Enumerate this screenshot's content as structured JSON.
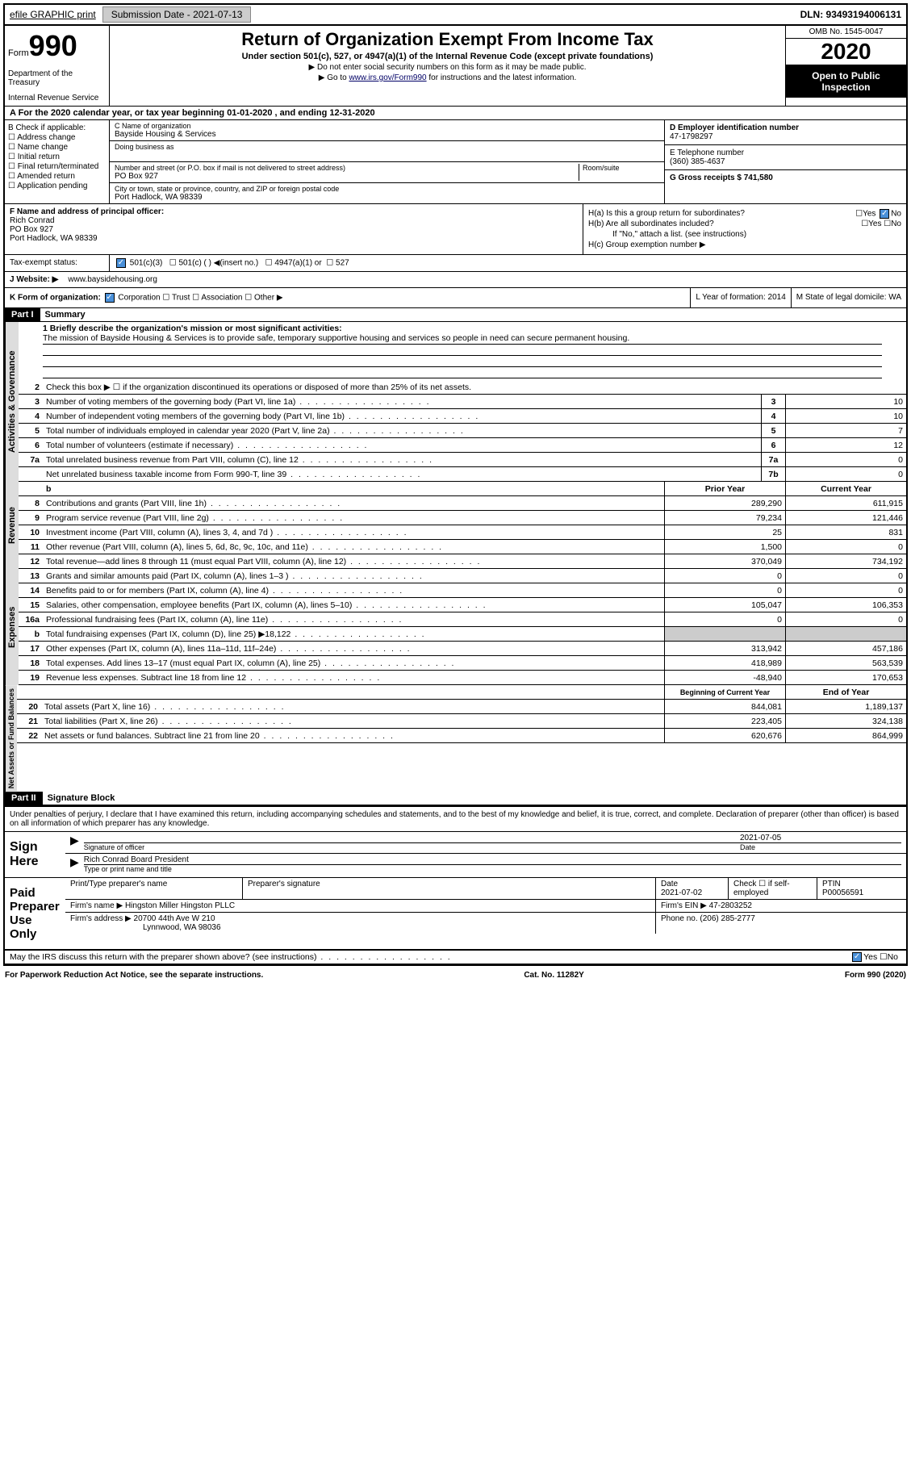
{
  "topbar": {
    "efile": "efile GRAPHIC print",
    "submission": "Submission Date - 2021-07-13",
    "dln": "DLN: 93493194006131"
  },
  "header": {
    "form_word": "Form",
    "form_num": "990",
    "title": "Return of Organization Exempt From Income Tax",
    "sub": "Under section 501(c), 527, or 4947(a)(1) of the Internal Revenue Code (except private foundations)",
    "note1": "▶ Do not enter social security numbers on this form as it may be made public.",
    "note2_pre": "▶ Go to ",
    "note2_link": "www.irs.gov/Form990",
    "note2_post": " for instructions and the latest information.",
    "dept1": "Department of the Treasury",
    "dept2": "Internal Revenue Service",
    "omb": "OMB No. 1545-0047",
    "year": "2020",
    "inspection": "Open to Public Inspection"
  },
  "row_a": "A   For the 2020 calendar year, or tax year beginning 01-01-2020    , and ending 12-31-2020",
  "col_b": {
    "title": "B Check if applicable:",
    "opts": [
      "Address change",
      "Name change",
      "Initial return",
      "Final return/terminated",
      "Amended return",
      "Application pending"
    ]
  },
  "col_c": {
    "name_lbl": "C Name of organization",
    "name": "Bayside Housing & Services",
    "dba_lbl": "Doing business as",
    "addr_lbl": "Number and street (or P.O. box if mail is not delivered to street address)",
    "room_lbl": "Room/suite",
    "addr": "PO Box 927",
    "city_lbl": "City or town, state or province, country, and ZIP or foreign postal code",
    "city": "Port Hadlock, WA  98339"
  },
  "col_de": {
    "d_lbl": "D Employer identification number",
    "d": "47-1798297",
    "e_lbl": "E Telephone number",
    "e": "(360) 385-4637",
    "g_lbl": "G Gross receipts $ 741,580"
  },
  "col_f": {
    "lbl": "F  Name and address of principal officer:",
    "name": "Rich Conrad",
    "addr1": "PO Box 927",
    "addr2": "Port Hadlock, WA  98339"
  },
  "col_h": {
    "a": "H(a)  Is this a group return for subordinates?",
    "b": "H(b)  Are all subordinates included?",
    "b_note": "If \"No,\" attach a list. (see instructions)",
    "c": "H(c)  Group exemption number ▶"
  },
  "tax_status": {
    "lbl": "Tax-exempt status:",
    "o1": "501(c)(3)",
    "o2": "501(c) (  ) ◀(insert no.)",
    "o3": "4947(a)(1) or",
    "o4": "527"
  },
  "website": {
    "lbl": "J   Website: ▶",
    "val": "www.baysidehousing.org"
  },
  "row_k": {
    "k": "K Form of organization:",
    "opts": [
      "Corporation",
      "Trust",
      "Association",
      "Other ▶"
    ],
    "l": "L Year of formation: 2014",
    "m": "M State of legal domicile: WA"
  },
  "part1": {
    "hdr": "Part I",
    "title": "Summary",
    "l1_lbl": "1  Briefly describe the organization's mission or most significant activities:",
    "l1_txt": "The mission of Bayside Housing & Services is to provide safe, temporary supportive housing and services so people in need can secure permanent housing.",
    "l2": "Check this box ▶ ☐  if the organization discontinued its operations or disposed of more than 25% of its net assets.",
    "lines_gov": [
      {
        "n": "3",
        "d": "Number of voting members of the governing body (Part VI, line 1a)",
        "b": "3",
        "v": "10"
      },
      {
        "n": "4",
        "d": "Number of independent voting members of the governing body (Part VI, line 1b)",
        "b": "4",
        "v": "10"
      },
      {
        "n": "5",
        "d": "Total number of individuals employed in calendar year 2020 (Part V, line 2a)",
        "b": "5",
        "v": "7"
      },
      {
        "n": "6",
        "d": "Total number of volunteers (estimate if necessary)",
        "b": "6",
        "v": "12"
      },
      {
        "n": "7a",
        "d": "Total unrelated business revenue from Part VIII, column (C), line 12",
        "b": "7a",
        "v": "0"
      },
      {
        "n": "",
        "d": "Net unrelated business taxable income from Form 990-T, line 39",
        "b": "7b",
        "v": "0"
      }
    ],
    "col_prior": "Prior Year",
    "col_curr": "Current Year",
    "lines_rev": [
      {
        "n": "8",
        "d": "Contributions and grants (Part VIII, line 1h)",
        "p": "289,290",
        "c": "611,915"
      },
      {
        "n": "9",
        "d": "Program service revenue (Part VIII, line 2g)",
        "p": "79,234",
        "c": "121,446"
      },
      {
        "n": "10",
        "d": "Investment income (Part VIII, column (A), lines 3, 4, and 7d )",
        "p": "25",
        "c": "831"
      },
      {
        "n": "11",
        "d": "Other revenue (Part VIII, column (A), lines 5, 6d, 8c, 9c, 10c, and 11e)",
        "p": "1,500",
        "c": "0"
      },
      {
        "n": "12",
        "d": "Total revenue—add lines 8 through 11 (must equal Part VIII, column (A), line 12)",
        "p": "370,049",
        "c": "734,192"
      }
    ],
    "lines_exp": [
      {
        "n": "13",
        "d": "Grants and similar amounts paid (Part IX, column (A), lines 1–3 )",
        "p": "0",
        "c": "0"
      },
      {
        "n": "14",
        "d": "Benefits paid to or for members (Part IX, column (A), line 4)",
        "p": "0",
        "c": "0"
      },
      {
        "n": "15",
        "d": "Salaries, other compensation, employee benefits (Part IX, column (A), lines 5–10)",
        "p": "105,047",
        "c": "106,353"
      },
      {
        "n": "16a",
        "d": "Professional fundraising fees (Part IX, column (A), line 11e)",
        "p": "0",
        "c": "0"
      },
      {
        "n": "b",
        "d": "Total fundraising expenses (Part IX, column (D), line 25) ▶18,122",
        "p": "",
        "c": "",
        "shaded": true
      },
      {
        "n": "17",
        "d": "Other expenses (Part IX, column (A), lines 11a–11d, 11f–24e)",
        "p": "313,942",
        "c": "457,186"
      },
      {
        "n": "18",
        "d": "Total expenses. Add lines 13–17 (must equal Part IX, column (A), line 25)",
        "p": "418,989",
        "c": "563,539"
      },
      {
        "n": "19",
        "d": "Revenue less expenses. Subtract line 18 from line 12",
        "p": "-48,940",
        "c": "170,653"
      }
    ],
    "col_begin": "Beginning of Current Year",
    "col_end": "End of Year",
    "lines_net": [
      {
        "n": "20",
        "d": "Total assets (Part X, line 16)",
        "p": "844,081",
        "c": "1,189,137"
      },
      {
        "n": "21",
        "d": "Total liabilities (Part X, line 26)",
        "p": "223,405",
        "c": "324,138"
      },
      {
        "n": "22",
        "d": "Net assets or fund balances. Subtract line 21 from line 20",
        "p": "620,676",
        "c": "864,999"
      }
    ]
  },
  "part2": {
    "hdr": "Part II",
    "title": "Signature Block",
    "decl": "Under penalties of perjury, I declare that I have examined this return, including accompanying schedules and statements, and to the best of my knowledge and belief, it is true, correct, and complete. Declaration of preparer (other than officer) is based on all information of which preparer has any knowledge.",
    "sign_here": "Sign Here",
    "sig_officer": "Signature of officer",
    "sig_date": "2021-07-05",
    "sig_date_lbl": "Date",
    "sig_name": "Rich Conrad  Board President",
    "sig_name_lbl": "Type or print name and title",
    "paid": "Paid Preparer Use Only",
    "prep_name_lbl": "Print/Type preparer's name",
    "prep_sig_lbl": "Preparer's signature",
    "prep_date_lbl": "Date",
    "prep_date": "2021-07-02",
    "prep_check": "Check ☐ if self-employed",
    "ptin_lbl": "PTIN",
    "ptin": "P00056591",
    "firm_name_lbl": "Firm's name    ▶",
    "firm_name": "Hingston Miller Hingston PLLC",
    "firm_ein_lbl": "Firm's EIN ▶",
    "firm_ein": "47-2803252",
    "firm_addr_lbl": "Firm's address ▶",
    "firm_addr1": "20700 44th Ave W 210",
    "firm_addr2": "Lynnwood, WA  98036",
    "phone_lbl": "Phone no.",
    "phone": "(206) 285-2777",
    "discuss": "May the IRS discuss this return with the preparer shown above? (see instructions)",
    "yes": "Yes",
    "no": "No"
  },
  "footer": {
    "l": "For Paperwork Reduction Act Notice, see the separate instructions.",
    "c": "Cat. No. 11282Y",
    "r": "Form 990 (2020)"
  },
  "vtabs": {
    "gov": "Activities & Governance",
    "rev": "Revenue",
    "exp": "Expenses",
    "net": "Net Assets or Fund Balances"
  }
}
